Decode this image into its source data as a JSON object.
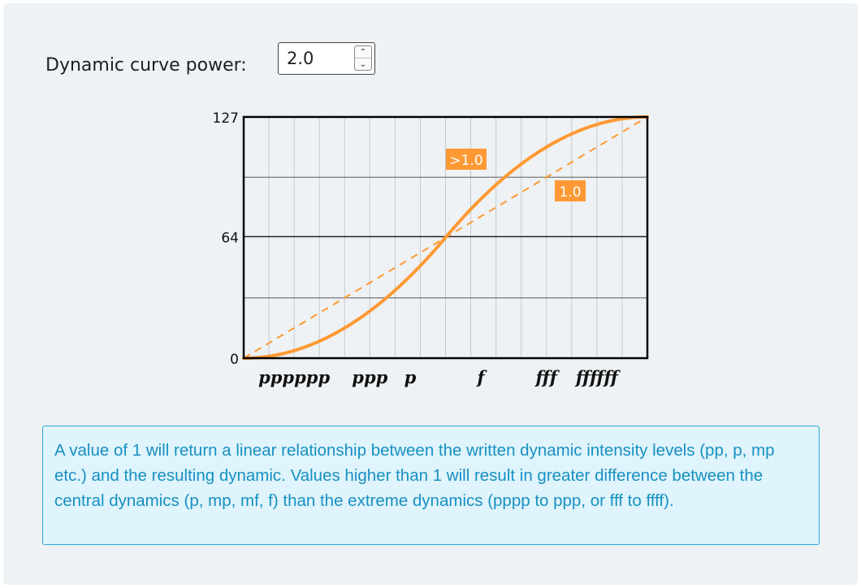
{
  "control": {
    "label": "Dynamic curve power:",
    "value": "2.0",
    "up_glyph": "⌃",
    "down_glyph": "⌄"
  },
  "chart_data": {
    "type": "line",
    "y_ticks": [
      "127",
      "64",
      "0"
    ],
    "x_tick_labels": [
      "pppppp",
      "ppp",
      "p",
      "f",
      "fff",
      "ffffff"
    ],
    "ylim": [
      0,
      127
    ],
    "grid": true,
    "series": [
      {
        "name": ">1.0",
        "style": "solid",
        "color": "#ff9933",
        "power": 2.0,
        "x": [
          0,
          0.0625,
          0.125,
          0.1875,
          0.25,
          0.3125,
          0.375,
          0.4375,
          0.5,
          0.5625,
          0.625,
          0.6875,
          0.75,
          0.8125,
          0.875,
          0.9375,
          1
        ],
        "values": [
          0,
          1,
          4,
          9,
          16,
          25,
          36,
          49,
          63.5,
          78,
          91,
          102,
          111,
          118,
          123,
          126,
          127
        ]
      },
      {
        "name": "1.0",
        "style": "dashed",
        "color": "#ff9933",
        "power": 1.0,
        "x": [
          0,
          1
        ],
        "values": [
          0,
          127
        ]
      }
    ],
    "annotations": [
      ">1.0",
      "1.0"
    ]
  },
  "note": {
    "text": "A value of 1 will return a linear relationship between the written dynamic intensity levels (pp, p, mp etc.) and the resulting dynamic. Values higher than 1 will result in greater difference between the central dynamics (p, mp, mf, f) than the extreme dynamics (pppp to ppp, or fff to ffff)."
  }
}
